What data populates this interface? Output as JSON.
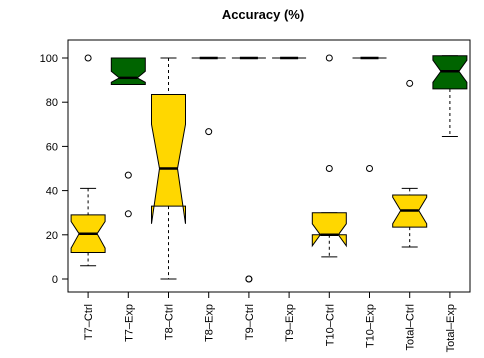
{
  "chart_data": {
    "type": "boxplot",
    "title": "Accuracy (%)",
    "xlabel": "",
    "ylabel": "",
    "ylim": [
      0,
      100
    ],
    "yticks": [
      0,
      20,
      40,
      60,
      80,
      100
    ],
    "grid": false,
    "legend": "none",
    "notched": true,
    "colors": {
      "ctrl": "#FFD700",
      "exp": "#006400",
      "outline": "#000000"
    },
    "categories": [
      "T7–Ctrl",
      "T7–Exp",
      "T8–Ctrl",
      "T8–Exp",
      "T9–Ctrl",
      "T9–Exp",
      "T10–Ctrl",
      "T10–Exp",
      "Total–Ctrl",
      "Total–Exp"
    ],
    "boxes": [
      {
        "group": "ctrl",
        "whisker_low": 6,
        "q1": 12,
        "notch_low": 14,
        "median": 20.5,
        "notch_high": 26,
        "q3": 29,
        "whisker_high": 41,
        "outliers": [
          100
        ]
      },
      {
        "group": "exp",
        "whisker_low": 88,
        "q1": 88,
        "notch_low": 89,
        "median": 91,
        "notch_high": 94,
        "q3": 100,
        "whisker_high": 100,
        "outliers": [
          47,
          29.5
        ]
      },
      {
        "group": "ctrl",
        "whisker_low": 0,
        "q1": 33,
        "notch_low": 25,
        "median": 50,
        "notch_high": 70,
        "q3": 83.5,
        "whisker_high": 100,
        "outliers": []
      },
      {
        "group": "exp",
        "whisker_low": 100,
        "q1": 100,
        "notch_low": 100,
        "median": 100,
        "notch_high": 100,
        "q3": 100,
        "whisker_high": 100,
        "outliers": [
          66.7
        ]
      },
      {
        "group": "exp",
        "whisker_low": 100,
        "q1": 100,
        "notch_low": 100,
        "median": 100,
        "notch_high": 100,
        "q3": 100,
        "whisker_high": 100,
        "outliers": [
          0,
          0
        ]
      },
      {
        "group": "exp",
        "whisker_low": 100,
        "q1": 100,
        "notch_low": 100,
        "median": 100,
        "notch_high": 100,
        "q3": 100,
        "whisker_high": 100,
        "outliers": []
      },
      {
        "group": "ctrl",
        "whisker_low": 10,
        "q1": 20,
        "notch_low": 15,
        "median": 20,
        "notch_high": 25,
        "q3": 30,
        "whisker_high": 30,
        "outliers": [
          100,
          50
        ]
      },
      {
        "group": "exp",
        "whisker_low": 100,
        "q1": 100,
        "notch_low": 100,
        "median": 100,
        "notch_high": 100,
        "q3": 100,
        "whisker_high": 100,
        "outliers": [
          50
        ]
      },
      {
        "group": "ctrl",
        "whisker_low": 14.5,
        "q1": 23.5,
        "notch_low": 25,
        "median": 31,
        "notch_high": 37,
        "q3": 38,
        "whisker_high": 41,
        "outliers": [
          88.5
        ]
      },
      {
        "group": "exp",
        "whisker_low": 64.5,
        "q1": 86,
        "notch_low": 89,
        "median": 94,
        "notch_high": 99,
        "q3": 101,
        "whisker_high": 101,
        "outliers": []
      }
    ]
  }
}
